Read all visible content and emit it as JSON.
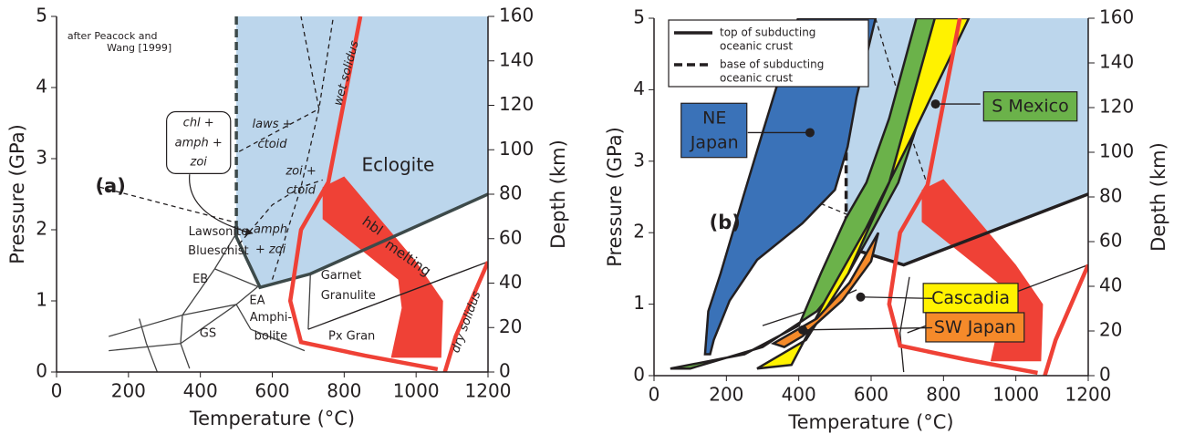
{
  "chart_data": [
    {
      "type": "line",
      "xlabel": "Temperature (°C)",
      "ylabel": "Pressure (GPa)",
      "y2label": "Depth (km)",
      "xlim": [
        0,
        1200
      ],
      "xticks": [
        0,
        200,
        400,
        600,
        800,
        1000,
        1200
      ],
      "ylim": [
        0,
        5
      ],
      "yticks": [
        0,
        1,
        2,
        3,
        4,
        5
      ],
      "y2lim": [
        0,
        160
      ],
      "y2ticks": [
        0,
        20,
        40,
        60,
        80,
        100,
        120,
        140,
        160
      ],
      "series": [
        {
          "color": "#bcd6ec",
          "fill": true,
          "x": [
            500,
            500,
            566,
            706,
            1200,
            1200
          ],
          "values": [
            5,
            2.03,
            1.19,
            1.38,
            2.5,
            5
          ]
        },
        {
          "color": "#ef4136",
          "fill": true,
          "x": [
            740,
            800,
            1000,
            1075,
            1070,
            930,
            960,
            950,
            740
          ],
          "values": [
            2.6,
            2.75,
            1.55,
            1.0,
            0.2,
            0.2,
            0.9,
            1.3,
            2.15
          ]
        },
        {
          "color": "#3d4a4a",
          "line": "dashed",
          "weight": "thick",
          "x": [
            500,
            500
          ],
          "values": [
            5,
            2.03
          ]
        },
        {
          "color": "#3d4a4a",
          "line": "solid",
          "weight": "thick",
          "x": [
            500,
            500,
            566,
            706,
            1200
          ],
          "values": [
            2.03,
            1.9,
            1.19,
            1.38,
            2.5
          ]
        },
        {
          "color": "#231f20",
          "line": "dashed",
          "weight": "thin",
          "x": [
            120,
            500
          ],
          "values": [
            2.6,
            2.1
          ]
        },
        {
          "color": "#231f20",
          "line": "dashed",
          "weight": "thin",
          "x": [
            508,
            600,
            680,
            740
          ],
          "values": [
            1.8,
            2.35,
            2.6,
            2.7
          ]
        },
        {
          "color": "#231f20",
          "line": "dashed",
          "weight": "thin",
          "x": [
            600,
            680,
            730,
            770
          ],
          "values": [
            1.3,
            2.6,
            3.7,
            5
          ]
        },
        {
          "color": "#231f20",
          "line": "dashed",
          "weight": "thin",
          "x": [
            730,
            680
          ],
          "values": [
            3.7,
            5
          ]
        },
        {
          "color": "#231f20",
          "line": "dashed",
          "weight": "thin",
          "x": [
            508,
            730
          ],
          "values": [
            3.1,
            3.7
          ]
        },
        {
          "color": "#444444",
          "line": "solid",
          "weight": "thin",
          "x": [
            500,
            440,
            350,
            345,
            370
          ],
          "values": [
            1.95,
            1.45,
            0.8,
            0.4,
            0.05
          ]
        },
        {
          "color": "#444444",
          "line": "solid",
          "weight": "thin",
          "x": [
            440,
            560
          ],
          "values": [
            1.45,
            1.2
          ]
        },
        {
          "color": "#444444",
          "line": "solid",
          "weight": "thin",
          "x": [
            145,
            350,
            500,
            560
          ],
          "values": [
            0.5,
            0.8,
            0.95,
            1.2
          ]
        },
        {
          "color": "#444444",
          "line": "solid",
          "weight": "thin",
          "x": [
            145,
            345,
            500,
            540
          ],
          "values": [
            0.3,
            0.4,
            0.95,
            0.6
          ]
        },
        {
          "color": "#444444",
          "line": "solid",
          "weight": "thin",
          "x": [
            230,
            250,
            280
          ],
          "values": [
            0.75,
            0.4,
            0.0
          ]
        },
        {
          "color": "#444444",
          "line": "solid",
          "weight": "thin",
          "x": [
            540,
            690
          ],
          "values": [
            0.6,
            0.3
          ]
        },
        {
          "color": "#444444",
          "line": "solid",
          "weight": "thin",
          "x": [
            706,
            700
          ],
          "values": [
            1.38,
            0.6
          ]
        },
        {
          "color": "#231f20",
          "line": "solid",
          "weight": "thin",
          "x": [
            700,
            1200
          ],
          "values": [
            0.6,
            1.55
          ]
        },
        {
          "color": "#ef4136",
          "line": "solid",
          "weight": "thick",
          "x": [
            845,
            756,
            680,
            650,
            680,
            858,
            1060
          ],
          "values": [
            5,
            2.67,
            2.0,
            1.0,
            0.42,
            0.23,
            0.04
          ]
        },
        {
          "color": "#ef4136",
          "line": "solid",
          "weight": "thick",
          "x": [
            1080,
            1110,
            1200
          ],
          "values": [
            0,
            0.5,
            1.55
          ]
        }
      ],
      "annotations": [
        "after Peacock and",
        "Wang [1999]",
        "(a)",
        "Eclogite",
        "laws +",
        "ctoid",
        "zoi +",
        "ctoid",
        "amph",
        "+ zoi",
        "chl +",
        "amph +",
        "zoi",
        "Lawsonite",
        "Blueschist",
        "EB",
        "EA",
        "GS",
        "Amphi-",
        "bolite",
        "Garnet",
        "Granulite",
        "Px Gran",
        "hbl",
        "melting",
        "wet solidus",
        "dry solidus"
      ]
    },
    {
      "type": "line",
      "xlabel": "Temperature (°C)",
      "ylabel": "Pressure (GPa)",
      "y2label": "Depth (km)",
      "xlim": [
        0,
        1200
      ],
      "xticks": [
        0,
        200,
        400,
        600,
        800,
        1000,
        1200
      ],
      "ylim": [
        0,
        5
      ],
      "yticks": [
        0,
        1,
        2,
        3,
        4,
        5
      ],
      "y2lim": [
        0,
        160
      ],
      "y2ticks": [
        0,
        20,
        40,
        60,
        80,
        100,
        120,
        140,
        160
      ],
      "legend": [
        {
          "lines": [
            "top of subducting",
            "oceanic crust"
          ],
          "line": "solid"
        },
        {
          "lines": [
            "base of subducting",
            "oceanic crust"
          ],
          "line": "dashed"
        }
      ],
      "series": [
        {
          "color": "#bcd6ec",
          "fill": true,
          "x": [
            398,
            1200,
            1200,
            690,
            531,
            531,
            450
          ],
          "values": [
            5,
            5,
            2.54,
            1.55,
            1.8,
            3.3,
            4.2
          ]
        },
        {
          "color": "#ef4136",
          "fill": true,
          "x": [
            740,
            800,
            1000,
            1075,
            1070,
            930,
            960,
            950,
            740
          ],
          "values": [
            2.6,
            2.75,
            1.55,
            1.0,
            0.2,
            0.2,
            0.9,
            1.3,
            2.15
          ]
        },
        {
          "color": "#231f20",
          "line": "solid",
          "weight": "thick",
          "x": [
            531,
            690,
            1200
          ],
          "values": [
            1.8,
            1.55,
            2.54
          ]
        },
        {
          "color": "#231f20",
          "line": "dashed",
          "weight": "thick",
          "x": [
            531,
            531
          ],
          "values": [
            3.3,
            1.8
          ]
        },
        {
          "color": "#231f20",
          "line": "dashed",
          "weight": "thin",
          "x": [
            440,
            560
          ],
          "values": [
            2.45,
            2.2
          ]
        },
        {
          "color": "#231f20",
          "line": "dashed",
          "weight": "thin",
          "x": [
            612,
            700,
            760
          ],
          "values": [
            5,
            3.5,
            2.6
          ]
        },
        {
          "color": "#231f20",
          "line": "solid",
          "weight": "thin",
          "x": [
            700,
            1200
          ],
          "values": [
            0.6,
            1.55
          ]
        },
        {
          "color": "#231f20",
          "line": "solid",
          "weight": "thin",
          "x": [
            300,
            450,
            560
          ],
          "values": [
            0.7,
            0.95,
            1.2
          ]
        },
        {
          "color": "#231f20",
          "line": "solid",
          "weight": "thin",
          "x": [
            706,
            680,
            690
          ],
          "values": [
            1.38,
            0.6,
            0.05
          ]
        },
        {
          "color": "#3a72b8",
          "fill": true,
          "edge": "#231f20",
          "x": [
            141,
            150,
            184,
            247,
            300,
            335,
            398,
            612,
            560,
            535,
            500,
            410,
            285,
            209,
            165,
            155
          ],
          "values": [
            0.3,
            0.9,
            1.43,
            2.51,
            3.4,
            3.98,
            5,
            5,
            3.9,
            3.2,
            2.6,
            2.13,
            1.62,
            1.05,
            0.5,
            0.3
          ]
        },
        {
          "color": "#6bb24a",
          "fill": true,
          "edge": "#231f20",
          "x": [
            45,
            250,
            400,
            461,
            530,
            587,
            650,
            725,
            814,
            740,
            675,
            600,
            537,
            450,
            300,
            100
          ],
          "values": [
            0.1,
            0.3,
            0.7,
            1.43,
            2.2,
            2.7,
            3.6,
            5,
            5,
            3.7,
            2.7,
            2.0,
            1.43,
            0.9,
            0.4,
            0.1
          ]
        },
        {
          "color": "#fff200",
          "fill": true,
          "edge": "#231f20",
          "x": [
            285,
            420,
            537,
            650,
            776,
            870,
            713,
            587,
            473,
            380
          ],
          "values": [
            0.1,
            0.5,
            1.43,
            2.7,
            5,
            5,
            3.34,
            2.07,
            1.05,
            0.15
          ]
        },
        {
          "color": "#f58a2a",
          "fill": true,
          "edge": "#231f20",
          "x": [
            330,
            450,
            540,
            620,
            600,
            520,
            410,
            360
          ],
          "values": [
            0.45,
            0.8,
            1.3,
            2.0,
            1.6,
            1.05,
            0.55,
            0.4
          ]
        },
        {
          "color": "#ef4136",
          "line": "solid",
          "weight": "thick",
          "x": [
            845,
            756,
            680,
            650,
            680,
            858,
            1060
          ],
          "values": [
            5,
            2.67,
            2.0,
            1.0,
            0.42,
            0.23,
            0.04
          ]
        },
        {
          "color": "#ef4136",
          "line": "solid",
          "weight": "thick",
          "x": [
            1080,
            1110,
            1200
          ],
          "values": [
            0,
            0.5,
            1.55
          ]
        }
      ],
      "annotations": [
        "(b)",
        "NE",
        "Japan",
        "S Mexico",
        "Cascadia",
        "SW Japan"
      ]
    }
  ]
}
